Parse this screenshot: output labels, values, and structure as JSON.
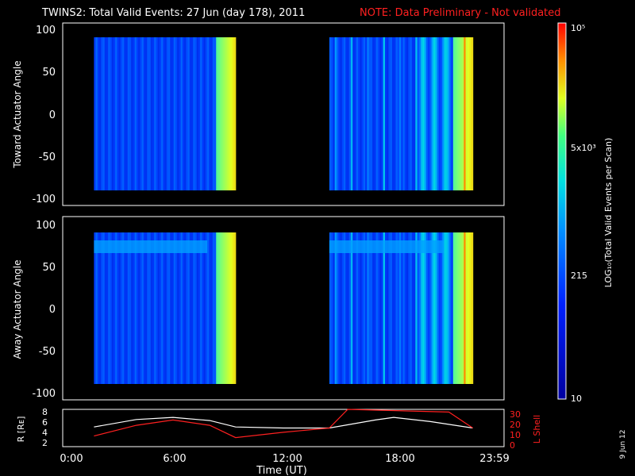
{
  "title": {
    "main": "TWINS2: Total Valid Events: 27 Jun (day 178), 2011",
    "note": "NOTE: Data Preliminary - Not validated",
    "note_color": "#ff2020"
  },
  "panels": [
    {
      "ylabel": "Toward Actuator Angle",
      "yticks": [
        "100",
        "50",
        "0",
        "-50",
        "-100"
      ]
    },
    {
      "ylabel": "Away Actuator Angle",
      "yticks": [
        "100",
        "50",
        "0",
        "-50",
        "-100"
      ]
    }
  ],
  "colorbar": {
    "label": "LOG₁₀(Total Valid Events per Scan)",
    "ticks": [
      "10⁵",
      "5x10³",
      "215",
      "10"
    ],
    "scale": "log",
    "range": [
      10,
      100000
    ]
  },
  "ephemeris": {
    "left_label": "R [Rᴇ]",
    "right_label": "L Shell",
    "left_ticks": [
      "8",
      "6",
      "4",
      "2"
    ],
    "right_ticks": [
      "30",
      "20",
      "10",
      "0"
    ],
    "right_color": "#ff2020"
  },
  "xaxis": {
    "label": "Time (UT)",
    "ticks": [
      "0:00",
      "6:00",
      "12:00",
      "18:00",
      "23:59"
    ]
  },
  "date_stamp": "9 Jun 12",
  "chart_data": {
    "type": "heatmap",
    "x_unit": "hours UT",
    "xlim": [
      0,
      24
    ],
    "ylim": [
      -100,
      100
    ],
    "data_intervals_hours": [
      [
        1.7,
        9.4
      ],
      [
        14.5,
        22.3
      ]
    ],
    "ephemeris_series": [
      {
        "name": "R",
        "color": "#ffffff",
        "x": [
          1.7,
          4,
          6,
          8,
          9.4,
          12,
          14.5,
          17,
          18,
          20,
          22.3
        ],
        "y": [
          5.2,
          6.6,
          7.0,
          6.4,
          5.2,
          5.0,
          5.0,
          6.5,
          7.0,
          6.2,
          5.0
        ]
      },
      {
        "name": "L Shell",
        "color": "#ff2020",
        "x": [
          1.7,
          4,
          6,
          8,
          9.4,
          12,
          14.5,
          15.5,
          21.0,
          22.3
        ],
        "y": [
          3.5,
          5.5,
          6.5,
          5.5,
          3.2,
          4.2,
          5.0,
          8.5,
          8.0,
          5.0
        ]
      }
    ]
  }
}
